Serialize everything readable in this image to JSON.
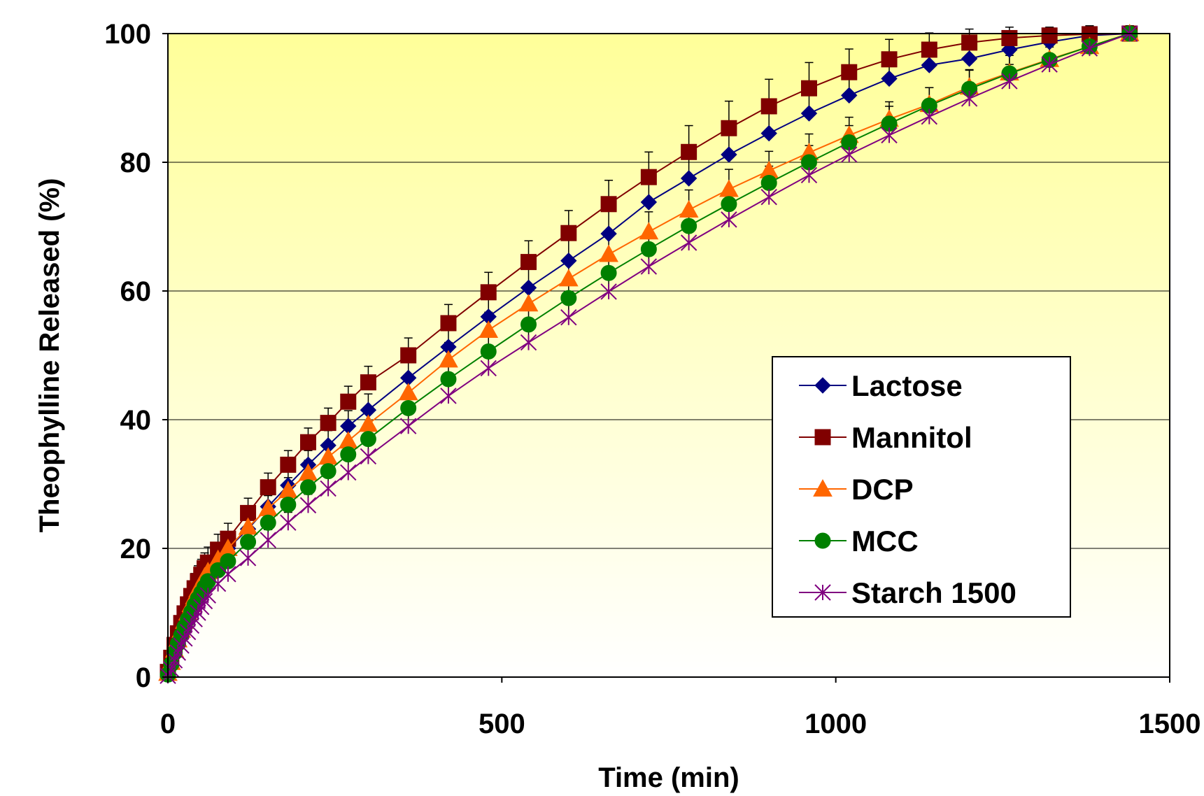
{
  "chart_data": {
    "type": "line",
    "title": "",
    "xlabel": "Time (min)",
    "ylabel": "Theophylline Released (%)",
    "xlim": [
      0,
      1500
    ],
    "ylim": [
      0,
      100
    ],
    "x_ticks": [
      "0",
      "500",
      "1000",
      "1500"
    ],
    "y_ticks": [
      "0",
      "20",
      "40",
      "60",
      "80",
      "100"
    ],
    "x_tick_values": [
      0,
      500,
      1000,
      1500
    ],
    "y_tick_values": [
      0,
      20,
      40,
      60,
      80,
      100
    ],
    "grid": "horizontal",
    "legend_position": "lower-right",
    "background": "gradient yellow (top) to white (bottom)",
    "x": [
      0,
      5,
      10,
      15,
      20,
      25,
      30,
      35,
      40,
      45,
      50,
      55,
      60,
      75,
      90,
      120,
      150,
      180,
      210,
      240,
      270,
      300,
      360,
      420,
      480,
      540,
      600,
      660,
      720,
      780,
      840,
      900,
      960,
      1020,
      1080,
      1140,
      1200,
      1260,
      1320,
      1380,
      1440
    ],
    "series": [
      {
        "name": "Lactose",
        "color": "#000080",
        "marker": "diamond",
        "values": [
          0.5,
          2.5,
          4.5,
          6.0,
          7.5,
          9.0,
          10.2,
          11.5,
          12.6,
          13.7,
          14.7,
          15.6,
          16.5,
          18.5,
          20.0,
          23.0,
          26.5,
          29.8,
          33.0,
          36.0,
          39.0,
          41.5,
          46.5,
          51.3,
          56.0,
          60.5,
          64.7,
          68.9,
          73.8,
          77.5,
          81.2,
          84.5,
          87.6,
          90.4,
          93.0,
          95.1,
          96.1,
          97.5,
          98.7,
          99.7,
          100.0
        ],
        "errors": [
          0.5,
          1.5,
          1.8,
          2.0,
          2.1,
          2.2,
          2.2,
          2.3,
          2.3,
          2.4,
          2.4,
          2.4,
          2.4,
          2.4,
          2.4,
          2.3,
          2.2,
          2.2,
          2.2,
          2.3,
          2.4,
          2.5,
          2.8,
          3.0,
          3.2,
          3.3,
          3.4,
          3.6,
          3.8,
          3.9,
          4.0,
          4.0,
          3.8,
          3.6,
          3.3,
          3.0,
          2.7,
          2.4,
          2.1,
          2.2,
          2.3
        ]
      },
      {
        "name": "Mannitol",
        "color": "#800000",
        "marker": "square",
        "values": [
          0.8,
          3.0,
          5.0,
          6.8,
          8.4,
          9.9,
          11.3,
          12.6,
          13.8,
          14.9,
          15.9,
          16.9,
          17.8,
          19.8,
          21.5,
          25.5,
          29.5,
          33.0,
          36.5,
          39.5,
          42.8,
          45.8,
          50.0,
          55.0,
          59.8,
          64.5,
          69.0,
          73.5,
          77.7,
          81.6,
          85.3,
          88.7,
          91.5,
          94.0,
          96.0,
          97.5,
          98.6,
          99.3,
          99.7,
          99.9,
          100.0
        ],
        "errors": [
          0.5,
          1.5,
          1.8,
          2.0,
          2.1,
          2.2,
          2.2,
          2.3,
          2.3,
          2.4,
          2.4,
          2.4,
          2.4,
          2.4,
          2.4,
          2.3,
          2.2,
          2.2,
          2.2,
          2.3,
          2.4,
          2.5,
          2.7,
          2.9,
          3.1,
          3.3,
          3.5,
          3.7,
          3.9,
          4.1,
          4.2,
          4.2,
          4.0,
          3.6,
          3.1,
          2.6,
          2.1,
          1.7,
          1.3,
          1.0,
          0.8
        ]
      },
      {
        "name": "DCP",
        "color": "#FF6600",
        "marker": "triangle",
        "values": [
          0.6,
          2.3,
          4.2,
          5.8,
          7.3,
          8.7,
          10.0,
          11.3,
          12.5,
          13.6,
          14.6,
          15.6,
          16.4,
          18.3,
          20.0,
          23.3,
          26.2,
          29.0,
          31.7,
          34.2,
          36.7,
          39.3,
          44.2,
          49.3,
          53.9,
          58.0,
          61.9,
          65.7,
          69.2,
          72.6,
          75.8,
          78.7,
          81.5,
          84.2,
          86.7,
          89.0,
          91.7,
          93.9,
          96.0,
          98.0,
          100.0
        ],
        "errors": [
          0.5,
          1.4,
          1.6,
          1.8,
          1.9,
          2.0,
          2.0,
          2.1,
          2.1,
          2.1,
          2.1,
          2.1,
          2.1,
          2.1,
          2.1,
          2.0,
          2.0,
          2.0,
          2.0,
          2.1,
          2.2,
          2.3,
          2.5,
          2.7,
          2.8,
          2.9,
          3.0,
          3.1,
          3.1,
          3.1,
          3.1,
          3.0,
          2.9,
          2.8,
          2.7,
          2.6,
          2.6,
          2.7,
          2.9,
          3.2,
          3.5
        ]
      },
      {
        "name": "MCC",
        "color": "#008000",
        "marker": "circle",
        "values": [
          0.4,
          2.0,
          3.8,
          5.2,
          6.5,
          7.8,
          9.0,
          10.1,
          11.2,
          12.2,
          13.1,
          14.0,
          14.9,
          16.6,
          18.0,
          21.0,
          24.0,
          26.8,
          29.5,
          32.0,
          34.6,
          37.0,
          41.8,
          46.3,
          50.6,
          54.8,
          58.9,
          62.8,
          66.5,
          70.1,
          73.5,
          76.8,
          80.0,
          83.1,
          86.0,
          88.8,
          91.4,
          93.8,
          95.9,
          98.0,
          100.0
        ],
        "errors": [
          0.4,
          1.2,
          1.4,
          1.6,
          1.7,
          1.8,
          1.8,
          1.8,
          1.8,
          1.8,
          1.8,
          1.8,
          1.8,
          1.8,
          1.8,
          1.7,
          1.7,
          1.7,
          1.7,
          1.8,
          1.9,
          2.0,
          2.2,
          2.4,
          2.5,
          2.6,
          2.7,
          2.7,
          2.7,
          2.7,
          2.6,
          2.6,
          2.6,
          2.6,
          2.7,
          2.8,
          3.0,
          3.1,
          3.3,
          3.5,
          3.8
        ]
      },
      {
        "name": "Starch 1500",
        "color": "#800080",
        "marker": "asterisk",
        "values": [
          0.2,
          1.2,
          2.6,
          3.8,
          4.9,
          6.0,
          7.0,
          8.0,
          9.0,
          10.0,
          10.9,
          11.8,
          12.7,
          14.5,
          16.0,
          18.5,
          21.3,
          24.0,
          26.7,
          29.3,
          31.8,
          34.3,
          39.0,
          43.7,
          48.0,
          52.0,
          55.9,
          59.9,
          63.8,
          67.5,
          71.1,
          74.6,
          78.0,
          81.2,
          84.2,
          87.1,
          89.9,
          92.6,
          95.2,
          97.7,
          100.0
        ],
        "errors": [
          0.3,
          1.0,
          1.2,
          1.4,
          1.5,
          1.6,
          1.6,
          1.6,
          1.6,
          1.6,
          1.6,
          1.6,
          1.6,
          1.6,
          1.6,
          1.6,
          1.6,
          1.6,
          1.7,
          1.8,
          1.9,
          2.0,
          2.1,
          2.2,
          2.2,
          2.2,
          2.2,
          2.2,
          2.2,
          2.2,
          2.2,
          2.2,
          2.2,
          2.3,
          2.3,
          2.4,
          2.5,
          2.6,
          2.7,
          2.8,
          3.0
        ]
      }
    ]
  }
}
